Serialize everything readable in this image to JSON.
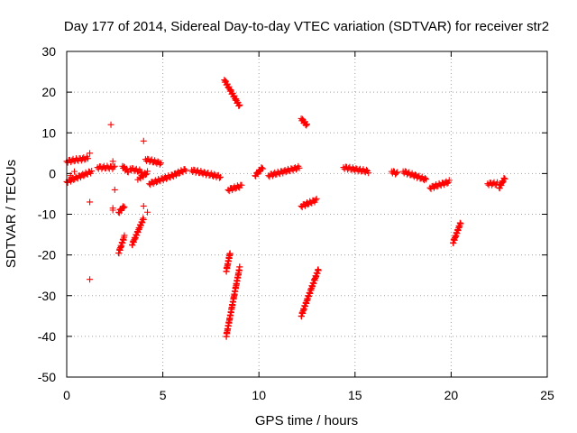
{
  "chart_data": {
    "type": "scatter",
    "title": "Day 177 of 2014, Sidereal Day-to-day VTEC variation (SDTVAR) for receiver str2",
    "xlabel": "GPS time / hours",
    "ylabel": "SDTVAR / TECUs",
    "xlim": [
      0,
      25
    ],
    "ylim": [
      -50,
      30
    ],
    "xticks": [
      0,
      5,
      10,
      15,
      20,
      25
    ],
    "yticks": [
      -50,
      -40,
      -30,
      -20,
      -10,
      0,
      10,
      20,
      30
    ],
    "grid": true,
    "marker": "+",
    "marker_color": "#ff0000",
    "segments": [
      {
        "x0": 0.0,
        "y0": 3.0,
        "x1": 1.1,
        "y1": 3.8
      },
      {
        "x0": 0.0,
        "y0": -2.0,
        "x1": 1.3,
        "y1": 0.5
      },
      {
        "x0": 1.6,
        "y0": 1.5,
        "x1": 2.5,
        "y1": 1.5
      },
      {
        "x0": 2.7,
        "y0": -9.5,
        "x1": 3.0,
        "y1": -8.0
      },
      {
        "x0": 2.7,
        "y0": -19.5,
        "x1": 3.0,
        "y1": -15.5
      },
      {
        "x0": 2.9,
        "y0": 1.8,
        "x1": 3.2,
        "y1": 0.5
      },
      {
        "x0": 3.3,
        "y0": 1.2,
        "x1": 3.9,
        "y1": 0.5
      },
      {
        "x0": 3.4,
        "y0": -17.5,
        "x1": 4.0,
        "y1": -11.0
      },
      {
        "x0": 3.8,
        "y0": -1.0,
        "x1": 4.2,
        "y1": 0.2
      },
      {
        "x0": 4.1,
        "y0": 3.5,
        "x1": 4.9,
        "y1": 2.5
      },
      {
        "x0": 4.3,
        "y0": -2.5,
        "x1": 5.5,
        "y1": -0.5
      },
      {
        "x0": 5.5,
        "y0": -0.5,
        "x1": 6.2,
        "y1": 1.0
      },
      {
        "x0": 6.5,
        "y0": 0.8,
        "x1": 8.0,
        "y1": -0.8
      },
      {
        "x0": 8.2,
        "y0": 23.0,
        "x1": 9.0,
        "y1": 16.5
      },
      {
        "x0": 8.3,
        "y0": -24.0,
        "x1": 8.5,
        "y1": -19.5
      },
      {
        "x0": 8.4,
        "y0": -4.0,
        "x1": 9.1,
        "y1": -3.0
      },
      {
        "x0": 8.3,
        "y0": -40.0,
        "x1": 9.0,
        "y1": -23.0
      },
      {
        "x0": 9.8,
        "y0": -0.5,
        "x1": 10.2,
        "y1": 1.5
      },
      {
        "x0": 10.5,
        "y0": -0.5,
        "x1": 12.1,
        "y1": 1.5
      },
      {
        "x0": 12.2,
        "y0": -8.0,
        "x1": 13.0,
        "y1": -6.5
      },
      {
        "x0": 12.2,
        "y0": 13.5,
        "x1": 12.5,
        "y1": 11.8
      },
      {
        "x0": 12.2,
        "y0": -35.0,
        "x1": 13.1,
        "y1": -23.5
      },
      {
        "x0": 14.4,
        "y0": 1.5,
        "x1": 15.7,
        "y1": 0.5
      },
      {
        "x0": 16.9,
        "y0": 0.5,
        "x1": 17.2,
        "y1": 0.0
      },
      {
        "x0": 17.5,
        "y0": 0.5,
        "x1": 18.7,
        "y1": -1.5
      },
      {
        "x0": 18.9,
        "y0": -3.5,
        "x1": 19.9,
        "y1": -2.0
      },
      {
        "x0": 20.1,
        "y0": -17.0,
        "x1": 20.5,
        "y1": -12.0
      },
      {
        "x0": 21.9,
        "y0": -2.5,
        "x1": 22.4,
        "y1": -2.5
      },
      {
        "x0": 22.5,
        "y0": -3.5,
        "x1": 22.8,
        "y1": -1.0
      }
    ],
    "points": [
      {
        "x": 1.2,
        "y": 5.0
      },
      {
        "x": 1.2,
        "y": -7.0
      },
      {
        "x": 1.2,
        "y": -26.0
      },
      {
        "x": 2.3,
        "y": 12.0
      },
      {
        "x": 2.4,
        "y": 3.0
      },
      {
        "x": 2.5,
        "y": -4.0
      },
      {
        "x": 2.4,
        "y": -8.5
      },
      {
        "x": 2.4,
        "y": -9.0
      },
      {
        "x": 4.0,
        "y": 8.0
      },
      {
        "x": 4.0,
        "y": -8.0
      },
      {
        "x": 4.2,
        "y": -9.5
      },
      {
        "x": 3.7,
        "y": -1.5
      },
      {
        "x": 0.4,
        "y": 0.5
      },
      {
        "x": 0.2,
        "y": -0.5
      }
    ]
  }
}
